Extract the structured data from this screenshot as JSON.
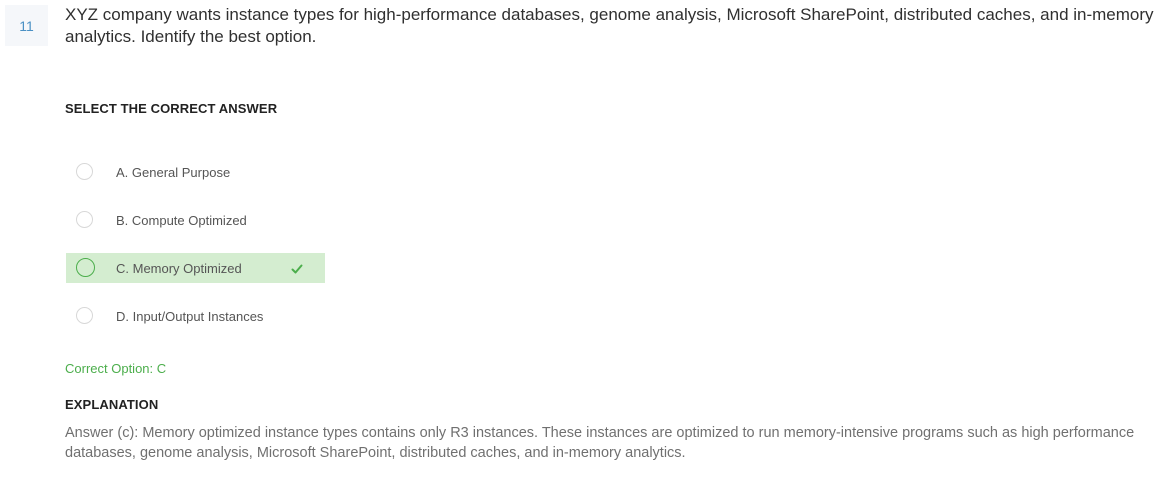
{
  "question": {
    "number": "11",
    "text": "XYZ company wants instance types for high-performance databases, genome analysis, Microsoft SharePoint, distributed caches, and in-memory analytics. Identify the best option."
  },
  "select_label": "SELECT THE CORRECT ANSWER",
  "options": [
    {
      "text": "A. General Purpose",
      "selected": false
    },
    {
      "text": "B. Compute Optimized",
      "selected": false
    },
    {
      "text": "C. Memory Optimized",
      "selected": true
    },
    {
      "text": "D. Input/Output Instances",
      "selected": false
    }
  ],
  "correct_option": "Correct Option: C",
  "explanation": {
    "label": "EXPLANATION",
    "text": "Answer (c): Memory optimized instance types contains only R3 instances. These instances are optimized to run memory-intensive programs such as high performance databases, genome analysis, Microsoft SharePoint, distributed caches, and in-memory analytics."
  },
  "colors": {
    "selected_bg": "#d4edd0",
    "correct_green": "#4cae4c",
    "question_number": "#4a90c4"
  },
  "icons": {
    "selected_check": "check-icon"
  }
}
